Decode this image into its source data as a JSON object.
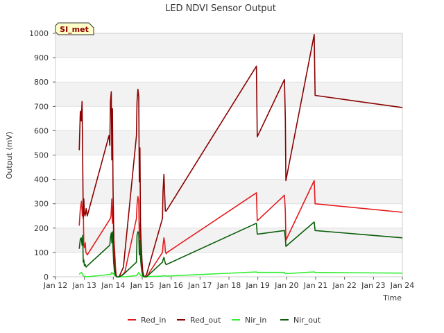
{
  "chart_data": {
    "type": "line",
    "title": "LED NDVI Sensor Output",
    "xlabel": "Time",
    "ylabel": "Output (mV)",
    "badge": "SI_met",
    "xlim": [
      12,
      24
    ],
    "ylim": [
      0,
      1000
    ],
    "x_ticks": [
      12,
      13,
      14,
      15,
      16,
      17,
      18,
      19,
      20,
      21,
      22,
      23,
      24
    ],
    "x_tick_labels": [
      "Jan 12",
      "Jan 13",
      "Jan 14",
      "Jan 15",
      "Jan 16",
      "Jan 17",
      "Jan 18",
      "Jan 19",
      "Jan 20",
      "Jan 21",
      "Jan 22",
      "Jan 23",
      "Jan 24"
    ],
    "y_ticks": [
      0,
      100,
      200,
      300,
      400,
      500,
      600,
      700,
      800,
      900,
      1000
    ],
    "y_tick_labels": [
      "0",
      "100",
      "200",
      "300",
      "400",
      "500",
      "600",
      "700",
      "800",
      "900",
      "1000"
    ],
    "grid": true,
    "legend_position": "bottom",
    "series": [
      {
        "name": "Red_in",
        "color": "#e31a1c",
        "x": [
          12.82,
          12.86,
          12.9,
          12.93,
          12.96,
          12.98,
          13.0,
          13.03,
          13.05,
          13.08,
          13.1,
          13.9,
          13.92,
          13.95,
          13.97,
          14.0,
          14.02,
          14.05,
          14.08,
          14.1,
          14.15,
          14.2,
          14.3,
          14.4,
          14.8,
          14.82,
          14.85,
          14.88,
          14.9,
          14.93,
          14.96,
          15.0,
          15.05,
          15.1,
          15.15,
          15.7,
          15.72,
          15.75,
          15.78,
          15.8,
          15.83,
          15.86,
          18.95,
          18.98,
          19.92,
          19.95,
          19.97,
          20.95,
          20.98,
          24.0
        ],
        "y": [
          210,
          280,
          310,
          250,
          300,
          130,
          120,
          140,
          100,
          95,
          90,
          240,
          250,
          320,
          220,
          295,
          150,
          100,
          30,
          5,
          0,
          0,
          5,
          20,
          240,
          295,
          330,
          310,
          150,
          220,
          100,
          30,
          5,
          0,
          0,
          100,
          130,
          160,
          140,
          105,
          95,
          100,
          345,
          230,
          335,
          270,
          150,
          395,
          300,
          265
        ]
      },
      {
        "name": "Red_out",
        "color": "#8b0000",
        "x": [
          12.82,
          12.86,
          12.89,
          12.92,
          12.94,
          12.96,
          12.98,
          13.0,
          13.02,
          13.04,
          13.06,
          13.1,
          13.85,
          13.88,
          13.9,
          13.93,
          13.95,
          13.97,
          13.99,
          14.01,
          14.04,
          14.08,
          14.12,
          14.2,
          14.35,
          14.8,
          14.82,
          14.85,
          14.88,
          14.9,
          14.92,
          14.94,
          14.96,
          14.99,
          15.02,
          15.06,
          15.1,
          15.15,
          15.7,
          15.72,
          15.75,
          15.78,
          15.8,
          15.83,
          18.95,
          18.98,
          19.92,
          19.95,
          19.97,
          20.95,
          20.98,
          24.0
        ],
        "y": [
          520,
          680,
          640,
          720,
          480,
          240,
          320,
          260,
          250,
          260,
          280,
          250,
          580,
          540,
          720,
          760,
          480,
          690,
          380,
          150,
          50,
          10,
          0,
          0,
          40,
          580,
          720,
          770,
          740,
          390,
          530,
          220,
          150,
          70,
          20,
          0,
          0,
          10,
          240,
          350,
          420,
          330,
          270,
          270,
          865,
          575,
          810,
          650,
          395,
          995,
          745,
          695
        ]
      },
      {
        "name": "Nir_in",
        "color": "#33ee33",
        "x": [
          12.82,
          12.86,
          12.9,
          12.93,
          12.96,
          12.98,
          13.0,
          13.05,
          13.1,
          13.9,
          13.92,
          13.95,
          13.97,
          14.0,
          14.05,
          14.1,
          14.2,
          14.4,
          14.8,
          14.85,
          14.88,
          14.9,
          14.95,
          15.0,
          15.05,
          15.1,
          15.7,
          15.75,
          15.8,
          15.85,
          18.95,
          18.98,
          19.92,
          19.95,
          20.95,
          20.98,
          24.0
        ],
        "y": [
          10,
          15,
          18,
          12,
          5,
          3,
          2,
          1,
          0,
          10,
          12,
          18,
          12,
          15,
          5,
          1,
          0,
          0,
          5,
          12,
          18,
          12,
          6,
          2,
          1,
          0,
          3,
          5,
          4,
          3,
          20,
          18,
          18,
          13,
          20,
          18,
          15
        ]
      },
      {
        "name": "Nir_out",
        "color": "#0a5e0a",
        "x": [
          12.82,
          12.86,
          12.89,
          12.92,
          12.94,
          12.96,
          12.98,
          13.0,
          13.03,
          13.06,
          13.1,
          13.88,
          13.9,
          13.93,
          13.95,
          13.97,
          13.99,
          14.01,
          14.04,
          14.08,
          14.12,
          14.2,
          14.35,
          14.8,
          14.82,
          14.85,
          14.88,
          14.9,
          14.92,
          14.94,
          14.96,
          14.99,
          15.02,
          15.06,
          15.1,
          15.15,
          15.7,
          15.72,
          15.75,
          15.78,
          15.8,
          15.83,
          18.95,
          18.98,
          19.92,
          19.95,
          19.97,
          20.95,
          20.98,
          24.0
        ],
        "y": [
          115,
          155,
          160,
          130,
          170,
          60,
          70,
          45,
          50,
          40,
          45,
          130,
          160,
          180,
          140,
          185,
          120,
          60,
          20,
          5,
          0,
          0,
          10,
          60,
          170,
          185,
          180,
          90,
          150,
          80,
          50,
          20,
          5,
          0,
          0,
          0,
          60,
          70,
          80,
          65,
          55,
          50,
          220,
          175,
          190,
          160,
          125,
          225,
          190,
          160
        ]
      }
    ]
  }
}
